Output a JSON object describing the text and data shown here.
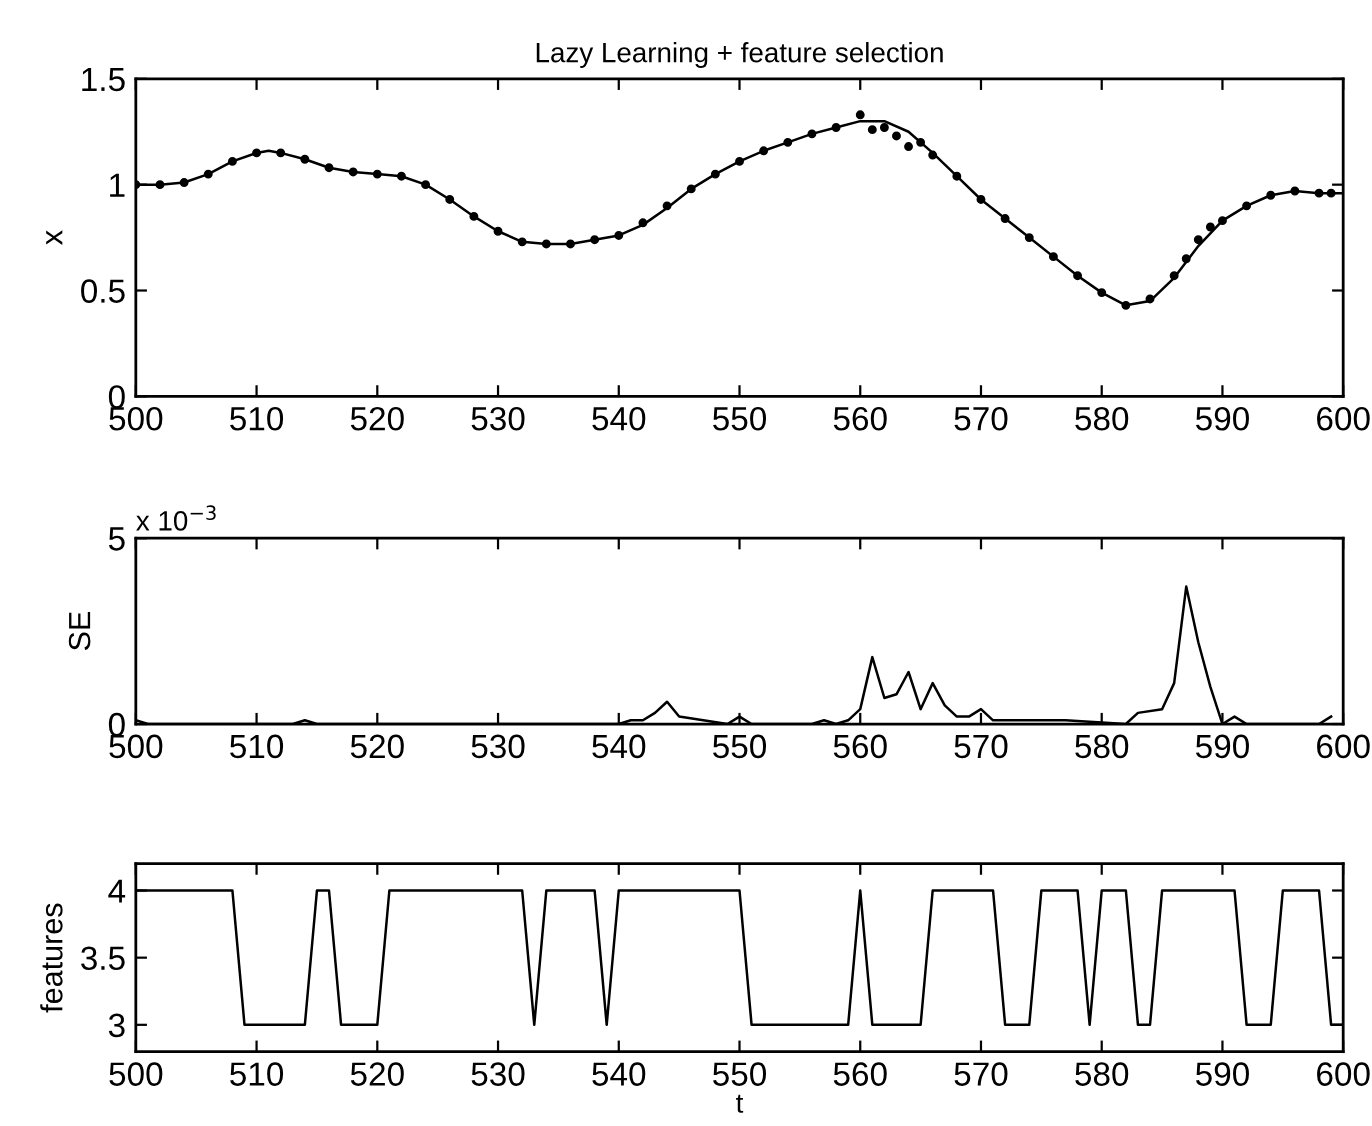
{
  "chart_data": [
    {
      "type": "line",
      "title": "Lazy Learning + feature selection",
      "ylabel": "x",
      "xlim": [
        500,
        600
      ],
      "xticks": [
        500,
        510,
        520,
        530,
        540,
        550,
        560,
        570,
        580,
        590,
        600
      ],
      "ylim": [
        0,
        1.5
      ],
      "yticks": [
        0,
        0.5,
        1,
        1.5
      ],
      "grid": false,
      "series": [
        {
          "type": "line",
          "color": "#000000",
          "x": [
            500,
            502,
            504,
            506,
            508,
            510,
            511,
            512,
            514,
            516,
            518,
            520,
            522,
            524,
            526,
            528,
            530,
            532,
            534,
            536,
            538,
            540,
            542,
            544,
            546,
            548,
            550,
            552,
            554,
            556,
            558,
            560,
            562,
            564,
            566,
            568,
            570,
            572,
            574,
            576,
            578,
            580,
            582,
            584,
            586,
            588,
            590,
            592,
            594,
            596,
            598,
            600
          ],
          "values": [
            1.0,
            1.0,
            1.01,
            1.05,
            1.11,
            1.15,
            1.16,
            1.15,
            1.12,
            1.08,
            1.06,
            1.05,
            1.04,
            1.0,
            0.93,
            0.85,
            0.78,
            0.73,
            0.72,
            0.72,
            0.74,
            0.76,
            0.81,
            0.89,
            0.98,
            1.05,
            1.11,
            1.16,
            1.2,
            1.24,
            1.27,
            1.3,
            1.3,
            1.25,
            1.15,
            1.04,
            0.93,
            0.84,
            0.75,
            0.66,
            0.57,
            0.49,
            0.43,
            0.45,
            0.56,
            0.71,
            0.83,
            0.9,
            0.95,
            0.97,
            0.96,
            0.96
          ]
        },
        {
          "type": "scatter",
          "color": "#000000",
          "marker": "circle",
          "x": [
            500,
            502,
            504,
            506,
            508,
            510,
            512,
            514,
            516,
            518,
            520,
            522,
            524,
            526,
            528,
            530,
            532,
            534,
            536,
            538,
            540,
            542,
            544,
            546,
            548,
            550,
            552,
            554,
            556,
            558,
            560,
            561,
            562,
            563,
            564,
            565,
            566,
            568,
            570,
            572,
            574,
            576,
            578,
            580,
            582,
            584,
            586,
            587,
            588,
            589,
            590,
            592,
            594,
            596,
            598,
            599
          ],
          "values": [
            1.0,
            1.0,
            1.01,
            1.05,
            1.11,
            1.15,
            1.15,
            1.12,
            1.08,
            1.06,
            1.05,
            1.04,
            1.0,
            0.93,
            0.85,
            0.78,
            0.73,
            0.72,
            0.72,
            0.74,
            0.76,
            0.82,
            0.9,
            0.98,
            1.05,
            1.11,
            1.16,
            1.2,
            1.24,
            1.27,
            1.33,
            1.26,
            1.27,
            1.23,
            1.18,
            1.2,
            1.14,
            1.04,
            0.93,
            0.84,
            0.75,
            0.66,
            0.57,
            0.49,
            0.43,
            0.46,
            0.57,
            0.65,
            0.74,
            0.8,
            0.83,
            0.9,
            0.95,
            0.97,
            0.96,
            0.96
          ]
        }
      ]
    },
    {
      "type": "line",
      "ylabel": "SE",
      "annotations": [
        "x 10$^{−3}$"
      ],
      "xlim": [
        500,
        600
      ],
      "xticks": [
        500,
        510,
        520,
        530,
        540,
        550,
        560,
        570,
        580,
        590,
        600
      ],
      "ylim": [
        0,
        5
      ],
      "yticks": [
        0,
        5
      ],
      "grid": false,
      "series": [
        {
          "color": "#000000",
          "x": [
            500,
            501,
            502,
            513,
            514,
            515,
            539,
            540,
            541,
            542,
            543,
            544,
            545,
            547,
            549,
            550,
            551,
            556,
            557,
            558,
            559,
            560,
            561,
            562,
            563,
            564,
            565,
            566,
            567,
            568,
            569,
            570,
            571,
            572,
            576,
            577,
            582,
            583,
            585,
            586,
            587,
            588,
            589,
            590,
            591,
            592,
            598,
            599
          ],
          "values": [
            0.1,
            0,
            0,
            0,
            0.1,
            0,
            0,
            0,
            0.1,
            0.1,
            0.3,
            0.6,
            0.2,
            0.1,
            0,
            0.2,
            0,
            0,
            0.1,
            0,
            0.1,
            0.4,
            1.8,
            0.7,
            0.8,
            1.4,
            0.4,
            1.1,
            0.5,
            0.2,
            0.2,
            0.4,
            0.1,
            0.1,
            0.1,
            0.1,
            0,
            0.3,
            0.4,
            1.1,
            3.7,
            2.2,
            1.0,
            0,
            0.2,
            0,
            0,
            0.2
          ]
        }
      ]
    },
    {
      "type": "line",
      "ylabel": "features",
      "xlabel": "t",
      "xlim": [
        500,
        600
      ],
      "xticks": [
        500,
        510,
        520,
        530,
        540,
        550,
        560,
        570,
        580,
        590,
        600
      ],
      "ylim": [
        2.8,
        4.2
      ],
      "yticks": [
        3,
        3.5,
        4
      ],
      "grid": false,
      "series": [
        {
          "color": "#000000",
          "x": [
            500,
            508,
            509,
            514,
            515,
            516,
            517,
            520,
            521,
            532,
            533,
            534,
            538,
            539,
            540,
            550,
            551,
            559,
            560,
            561,
            565,
            566,
            571,
            572,
            574,
            575,
            578,
            579,
            580,
            582,
            583,
            584,
            585,
            591,
            592,
            594,
            595,
            598,
            599,
            600
          ],
          "values": [
            4,
            4,
            3,
            3,
            4,
            4,
            3,
            3,
            4,
            4,
            3,
            4,
            4,
            3,
            4,
            4,
            3,
            3,
            4,
            3,
            3,
            4,
            4,
            3,
            3,
            4,
            4,
            3,
            4,
            4,
            3,
            3,
            4,
            4,
            3,
            3,
            4,
            4,
            3,
            3
          ]
        }
      ]
    }
  ]
}
